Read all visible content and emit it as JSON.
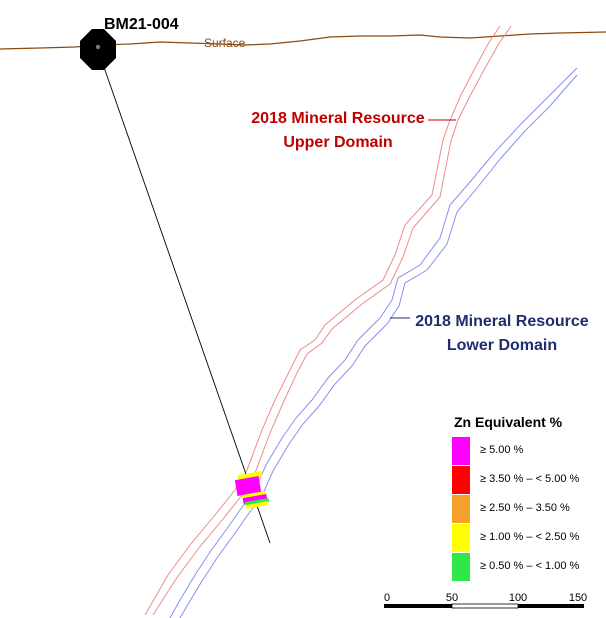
{
  "drillhole": {
    "name": "BM21-004"
  },
  "surface": {
    "label": "Surface",
    "color": "#8a4a10"
  },
  "upper_domain": {
    "line1": "2018 Mineral Resource",
    "line2": "Upper Domain",
    "color": "#c00000",
    "outline_color": "#f08a8a"
  },
  "lower_domain": {
    "line1": "2018 Mineral Resource",
    "line2": "Lower Domain",
    "color": "#1f2d6e",
    "outline_color": "#8a8ef2"
  },
  "legend": {
    "title": "Zn Equivalent %",
    "items": [
      {
        "label": "≥ 5.00 %",
        "color": "#ff00ff"
      },
      {
        "label": "≥ 3.50 % – < 5.00 %",
        "color": "#ff0000"
      },
      {
        "label": "≥ 2.50 % – 3.50 %",
        "color": "#f5a02a"
      },
      {
        "label": "≥ 1.00 % – < 2.50 %",
        "color": "#ffff00"
      },
      {
        "label": "≥ 0.50 % – < 1.00 %",
        "color": "#2ee84a"
      }
    ]
  },
  "scale_bar": {
    "ticks": [
      "0",
      "50",
      "100",
      "150"
    ]
  }
}
